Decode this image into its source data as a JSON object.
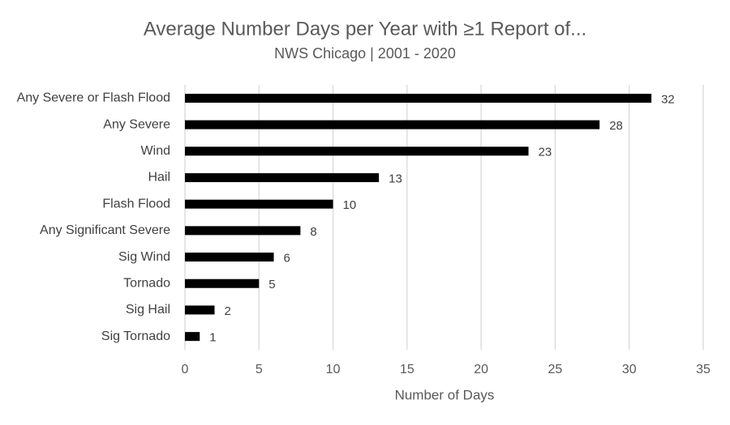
{
  "chart_data": {
    "type": "hbar",
    "title": "Average Number Days per Year with ≥1 Report of...",
    "subtitle": "NWS Chicago | 2001 - 2020",
    "x_label": "Number of Days",
    "categories": [
      "Any Severe or Flash Flood",
      "Any Severe",
      "Wind",
      "Hail",
      "Flash Flood",
      "Any Significant Severe",
      "Sig Wind",
      "Tornado",
      "Sig Hail",
      "Sig Tornado"
    ],
    "values": [
      31.5,
      28,
      23.2,
      13.1,
      10,
      7.8,
      6,
      5,
      2,
      1
    ],
    "value_labels": [
      "32",
      "28",
      "23",
      "13",
      "10",
      "8",
      "6",
      "5",
      "2",
      "1"
    ],
    "color": "#000000",
    "xlim": [
      0,
      35
    ],
    "xticks": [
      0,
      5,
      10,
      15,
      20,
      25,
      30,
      35
    ],
    "grid": true
  }
}
